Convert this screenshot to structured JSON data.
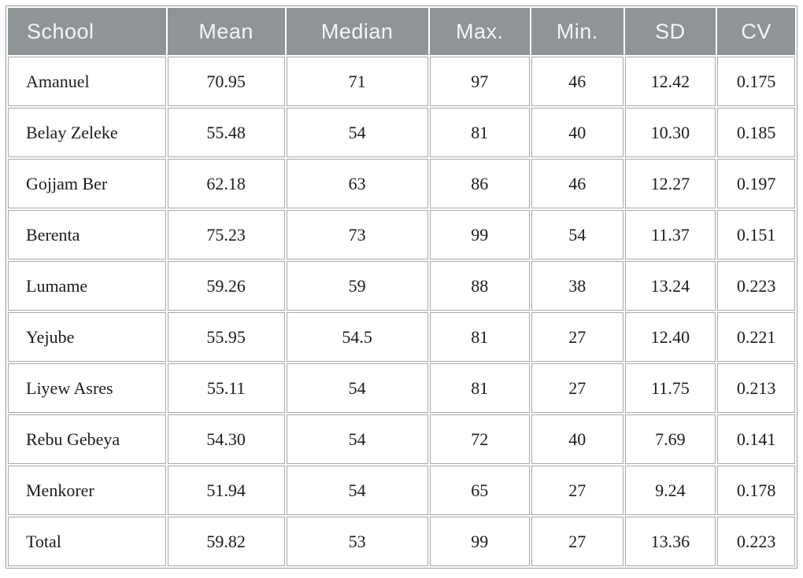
{
  "chart_data": {
    "type": "table",
    "columns": [
      "School",
      "Mean",
      "Median",
      "Max.",
      "Min.",
      "SD",
      "CV"
    ],
    "rows": [
      [
        "Amanuel",
        "70.95",
        "71",
        "97",
        "46",
        "12.42",
        "0.175"
      ],
      [
        "Belay Zeleke",
        "55.48",
        "54",
        "81",
        "40",
        "10.30",
        "0.185"
      ],
      [
        "Gojjam Ber",
        "62.18",
        "63",
        "86",
        "46",
        "12.27",
        "0.197"
      ],
      [
        "Berenta",
        "75.23",
        "73",
        "99",
        "54",
        "11.37",
        "0.151"
      ],
      [
        "Lumame",
        "59.26",
        "59",
        "88",
        "38",
        "13.24",
        "0.223"
      ],
      [
        "Yejube",
        "55.95",
        "54.5",
        "81",
        "27",
        "12.40",
        "0.221"
      ],
      [
        "Liyew Asres",
        "55.11",
        "54",
        "81",
        "27",
        "11.75",
        "0.213"
      ],
      [
        "Rebu Gebeya",
        "54.30",
        "54",
        "72",
        "40",
        "7.69",
        "0.141"
      ],
      [
        "Menkorer",
        "51.94",
        "54",
        "65",
        "27",
        "9.24",
        "0.178"
      ],
      [
        "Total",
        "59.82",
        "53",
        "99",
        "27",
        "13.36",
        "0.223"
      ]
    ]
  },
  "colors": {
    "header-bg": "#8f9496",
    "header-text": "#f5f5f6",
    "cell-border": "#a6aaac",
    "outer-border": "#9aa0a2",
    "body-text": "#1c1c1c",
    "page-bg": "#ffffff"
  }
}
